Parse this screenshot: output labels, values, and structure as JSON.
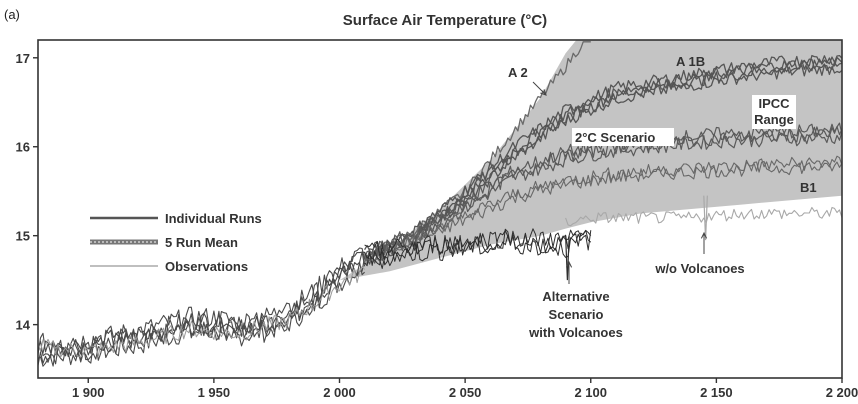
{
  "chart_data": {
    "type": "line",
    "panel_label": "(a)",
    "title": "Surface Air Temperature (°C)",
    "xlim": [
      1880,
      2200
    ],
    "ylim": [
      13.4,
      17.2
    ],
    "x_ticks": [
      {
        "value": 1900,
        "label": "1 900"
      },
      {
        "value": 1950,
        "label": "1 950"
      },
      {
        "value": 2000,
        "label": "2 000"
      },
      {
        "value": 2050,
        "label": "2 050"
      },
      {
        "value": 2100,
        "label": "2 100"
      },
      {
        "value": 2150,
        "label": "2 150"
      },
      {
        "value": 2200,
        "label": "2 200"
      }
    ],
    "y_ticks": [
      {
        "value": 14,
        "label": "14"
      },
      {
        "value": 15,
        "label": "15"
      },
      {
        "value": 16,
        "label": "16"
      },
      {
        "value": 17,
        "label": "17"
      }
    ],
    "legend": [
      {
        "label": "Individual Runs",
        "color": "#555555",
        "style": "solid"
      },
      {
        "label": "5 Run Mean",
        "color": "#777777",
        "style": "textured"
      },
      {
        "label": "Observations",
        "color": "#aaaaaa",
        "style": "thin"
      }
    ],
    "ipcc_range": {
      "x": [
        2000,
        2020,
        2040,
        2060,
        2080,
        2090,
        2100,
        2120,
        2140,
        2160,
        2180,
        2200
      ],
      "upper": [
        14.5,
        14.85,
        15.3,
        15.85,
        16.55,
        17.05,
        17.4,
        17.4,
        17.4,
        17.4,
        17.4,
        17.4
      ],
      "lower": [
        14.5,
        14.6,
        14.75,
        14.9,
        15.0,
        15.08,
        15.15,
        15.25,
        15.3,
        15.35,
        15.4,
        15.45
      ]
    },
    "series": [
      {
        "id": "historical",
        "x": [
          1880,
          1900,
          1920,
          1940,
          1950,
          1960,
          1970,
          1980,
          1990,
          2000,
          2010
        ],
        "y": [
          13.7,
          13.75,
          13.85,
          14.0,
          14.0,
          13.95,
          14.0,
          14.1,
          14.3,
          14.55,
          14.75
        ]
      },
      {
        "id": "A2",
        "x": [
          2010,
          2030,
          2050,
          2070,
          2090,
          2100
        ],
        "y": [
          14.75,
          15.05,
          15.5,
          16.2,
          16.9,
          17.3
        ]
      },
      {
        "id": "A1B",
        "x": [
          2010,
          2030,
          2050,
          2070,
          2090,
          2110,
          2130,
          2150,
          2170,
          2200
        ],
        "y": [
          14.75,
          15.0,
          15.45,
          15.95,
          16.35,
          16.6,
          16.7,
          16.8,
          16.88,
          16.95
        ]
      },
      {
        "id": "2C",
        "x": [
          2010,
          2030,
          2050,
          2070,
          2090,
          2110,
          2130,
          2150,
          2170,
          2200
        ],
        "y": [
          14.75,
          15.0,
          15.35,
          15.7,
          15.9,
          16.0,
          16.05,
          16.1,
          16.12,
          16.15
        ]
      },
      {
        "id": "B1",
        "x": [
          2010,
          2030,
          2050,
          2070,
          2090,
          2110,
          2130,
          2150,
          2170,
          2200
        ],
        "y": [
          14.75,
          14.95,
          15.2,
          15.45,
          15.6,
          15.68,
          15.72,
          15.75,
          15.78,
          15.8
        ]
      },
      {
        "id": "without-volcanoes",
        "x": [
          2090,
          2100,
          2120,
          2140,
          2160,
          2180,
          2200
        ],
        "y": [
          15.15,
          15.2,
          15.2,
          15.2,
          15.25,
          15.25,
          15.25
        ]
      },
      {
        "id": "with-volcanoes",
        "x": [
          2010,
          2030,
          2050,
          2070,
          2090,
          2100
        ],
        "y": [
          14.75,
          14.85,
          14.9,
          14.95,
          14.9,
          15.0
        ]
      },
      {
        "id": "observations",
        "x": [
          1880,
          1900,
          1920,
          1940,
          1960,
          1980,
          2000,
          2010
        ],
        "y": [
          13.75,
          13.7,
          13.8,
          13.95,
          13.9,
          14.05,
          14.45,
          14.6
        ]
      }
    ],
    "annotations": {
      "a2": "A 2",
      "a1b": "A 1B",
      "ipcc": [
        "IPCC",
        "Range"
      ],
      "two_degree": "2°C Scenario",
      "b1": "B1",
      "no_volcanoes": "w/o Volcanoes",
      "alternative": [
        "Alternative",
        "Scenario",
        "with Volcanoes"
      ]
    }
  }
}
